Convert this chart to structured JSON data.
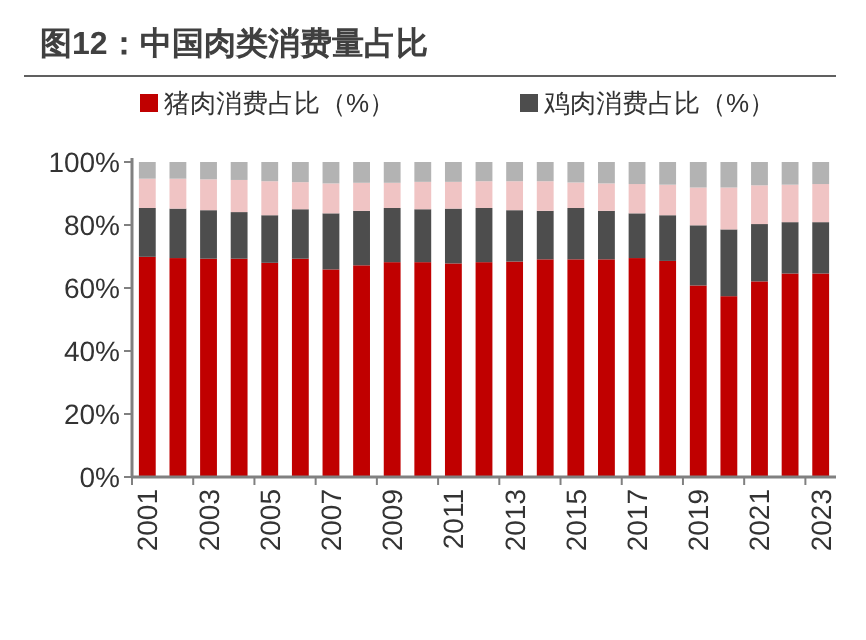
{
  "chart_data": {
    "type": "bar",
    "stacked": true,
    "title": "图12：中国肉类消费量占比",
    "categories": [
      "2001",
      null,
      "2003",
      null,
      "2005",
      null,
      "2007",
      null,
      "2009",
      null,
      "2011",
      null,
      "2013",
      null,
      "2015",
      null,
      "2017",
      null,
      "2019",
      null,
      "2021",
      null,
      "2023"
    ],
    "series": [
      {
        "name": "猪肉消费占比（%）",
        "color": "#c00000",
        "values": [
          69.9,
          69.5,
          69.3,
          69.3,
          68.0,
          69.3,
          65.9,
          67.2,
          68.2,
          68.2,
          67.8,
          68.2,
          68.4,
          69.1,
          69.1,
          69.1,
          69.5,
          68.6,
          60.8,
          57.4,
          62.1,
          64.6,
          64.6
        ]
      },
      {
        "name": "鸡肉消费占比（%）",
        "color": "#4d4d4d",
        "values": [
          15.5,
          15.7,
          15.4,
          14.8,
          15.1,
          15.7,
          17.8,
          17.3,
          17.2,
          16.8,
          17.4,
          17.2,
          16.3,
          15.4,
          16.3,
          15.4,
          14.2,
          14.5,
          19.1,
          21.2,
          18.2,
          16.3,
          16.3
        ]
      },
      {
        "color": "#f0c4c4",
        "values": [
          9.3,
          9.5,
          9.8,
          10.2,
          10.8,
          8.6,
          9.5,
          8.9,
          8.0,
          8.7,
          8.5,
          8.5,
          9.2,
          9.4,
          8.1,
          8.7,
          9.3,
          9.7,
          12.0,
          13.3,
          12.3,
          11.9,
          12.1
        ]
      },
      {
        "color": "#b3b3b3",
        "values": [
          5.3,
          5.3,
          5.5,
          5.7,
          6.1,
          6.4,
          6.8,
          6.6,
          6.6,
          6.3,
          6.3,
          6.1,
          6.1,
          6.1,
          6.5,
          6.8,
          7.0,
          7.2,
          8.1,
          8.1,
          7.4,
          7.2,
          7.0
        ]
      }
    ],
    "ylim": [
      0,
      100
    ],
    "yticks": [
      {
        "value": 0,
        "label": "0%"
      },
      {
        "value": 20,
        "label": "20%"
      },
      {
        "value": 40,
        "label": "40%"
      },
      {
        "value": 60,
        "label": "60%"
      },
      {
        "value": 80,
        "label": "80%"
      },
      {
        "value": 100,
        "label": "100%"
      }
    ],
    "grid": false,
    "legend": "top"
  }
}
